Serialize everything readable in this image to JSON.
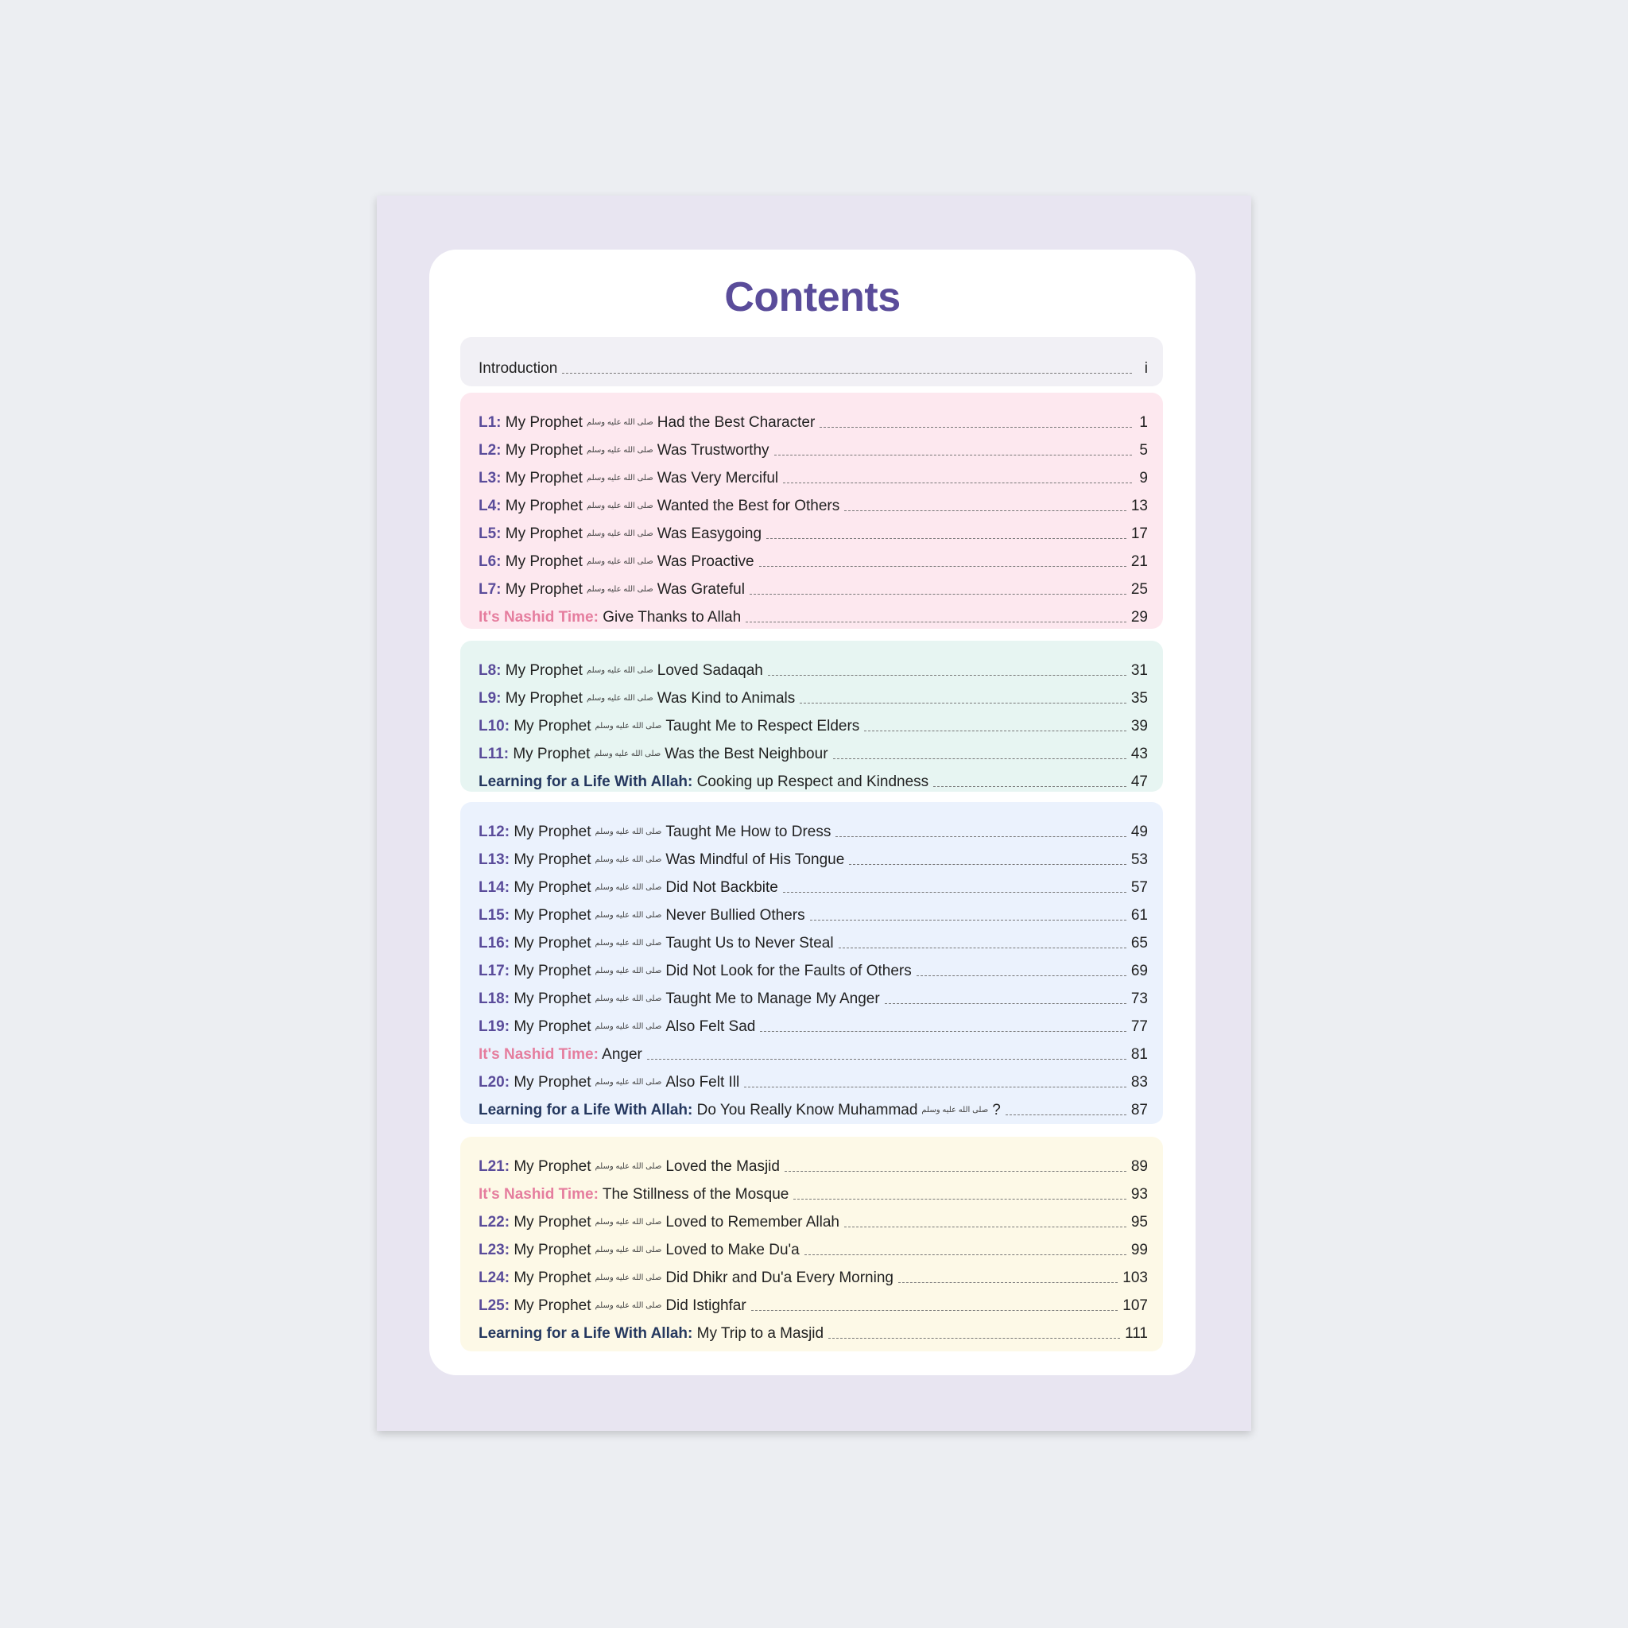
{
  "title": "Contents",
  "saw": "صلى الله عليه وسلم",
  "intro": {
    "label": "Introduction",
    "page": "i"
  },
  "section1": [
    {
      "prefix": "L1:",
      "text": "Had the Best Character",
      "page": "1"
    },
    {
      "prefix": "L2:",
      "text": "Was Trustworthy",
      "page": "5"
    },
    {
      "prefix": "L3:",
      "text": "Was Very Merciful",
      "page": "9"
    },
    {
      "prefix": "L4:",
      "text": "Wanted the Best for Others",
      "page": "13"
    },
    {
      "prefix": "L5:",
      "text": "Was Easygoing",
      "page": "17"
    },
    {
      "prefix": "L6:",
      "text": "Was Proactive",
      "page": "21"
    },
    {
      "prefix": "L7:",
      "text": "Was Grateful",
      "page": "25"
    }
  ],
  "nashid1": {
    "prefix": "It's Nashid Time:",
    "text": "Give Thanks to Allah",
    "page": "29"
  },
  "section2": [
    {
      "prefix": "L8:",
      "text": "Loved Sadaqah",
      "page": "31"
    },
    {
      "prefix": "L9:",
      "text": "Was Kind to Animals",
      "page": "35"
    },
    {
      "prefix": "L10:",
      "text": "Taught Me to Respect Elders",
      "page": "39"
    },
    {
      "prefix": "L11:",
      "text": "Was the Best Neighbour",
      "page": "43"
    }
  ],
  "life1": {
    "prefix": "Learning for a Life With Allah:",
    "text": "Cooking up Respect and Kindness",
    "page": "47"
  },
  "section3": [
    {
      "prefix": "L12:",
      "text": "Taught Me How to Dress",
      "page": "49"
    },
    {
      "prefix": "L13:",
      "text": "Was Mindful of His Tongue",
      "page": "53"
    },
    {
      "prefix": "L14:",
      "text": "Did Not Backbite",
      "page": "57"
    },
    {
      "prefix": "L15:",
      "text": "Never Bullied Others",
      "page": "61"
    },
    {
      "prefix": "L16:",
      "text": "Taught Us to Never Steal",
      "page": "65"
    },
    {
      "prefix": "L17:",
      "text": "Did Not Look for the Faults of Others",
      "page": "69"
    },
    {
      "prefix": "L18:",
      "text": "Taught Me to Manage My Anger",
      "page": "73"
    },
    {
      "prefix": "L19:",
      "text": "Also Felt Sad",
      "page": "77"
    }
  ],
  "nashid2": {
    "prefix": "It's Nashid Time:",
    "text": "Anger",
    "page": "81"
  },
  "l20": {
    "prefix": "L20:",
    "text": "Also Felt Ill",
    "page": "83"
  },
  "life2": {
    "prefix": "Learning for a Life With Allah:",
    "text": "Do You Really Know Muhammad",
    "suffix": "?",
    "page": "87"
  },
  "l21": {
    "prefix": "L21:",
    "text": "Loved the Masjid",
    "page": "89"
  },
  "nashid3": {
    "prefix": "It's Nashid Time:",
    "text": "The Stillness of the Mosque",
    "page": "93"
  },
  "section4": [
    {
      "prefix": "L22:",
      "text": "Loved to Remember Allah",
      "page": "95"
    },
    {
      "prefix": "L23:",
      "text": "Loved to Make Du'a",
      "page": "99"
    },
    {
      "prefix": "L24:",
      "text": "Did Dhikr and Du'a Every Morning",
      "page": "103"
    },
    {
      "prefix": "L25:",
      "text": "Did Istighfar",
      "page": "107"
    }
  ],
  "life3": {
    "prefix": "Learning for a Life With Allah:",
    "text": "My Trip to a Masjid",
    "page": "111"
  },
  "my_prophet": "My Prophet",
  "colors": {
    "title": "#5a4c9a",
    "lesson_prefix": "#5a4c9a",
    "nashid_prefix": "#e57d9e",
    "life_prefix": "#25385f",
    "box_intro": "#f1f0f5",
    "box_1": "#fde8ef",
    "box_2": "#e7f5f2",
    "box_3": "#ebf2fd",
    "box_4": "#fdf9e7"
  }
}
